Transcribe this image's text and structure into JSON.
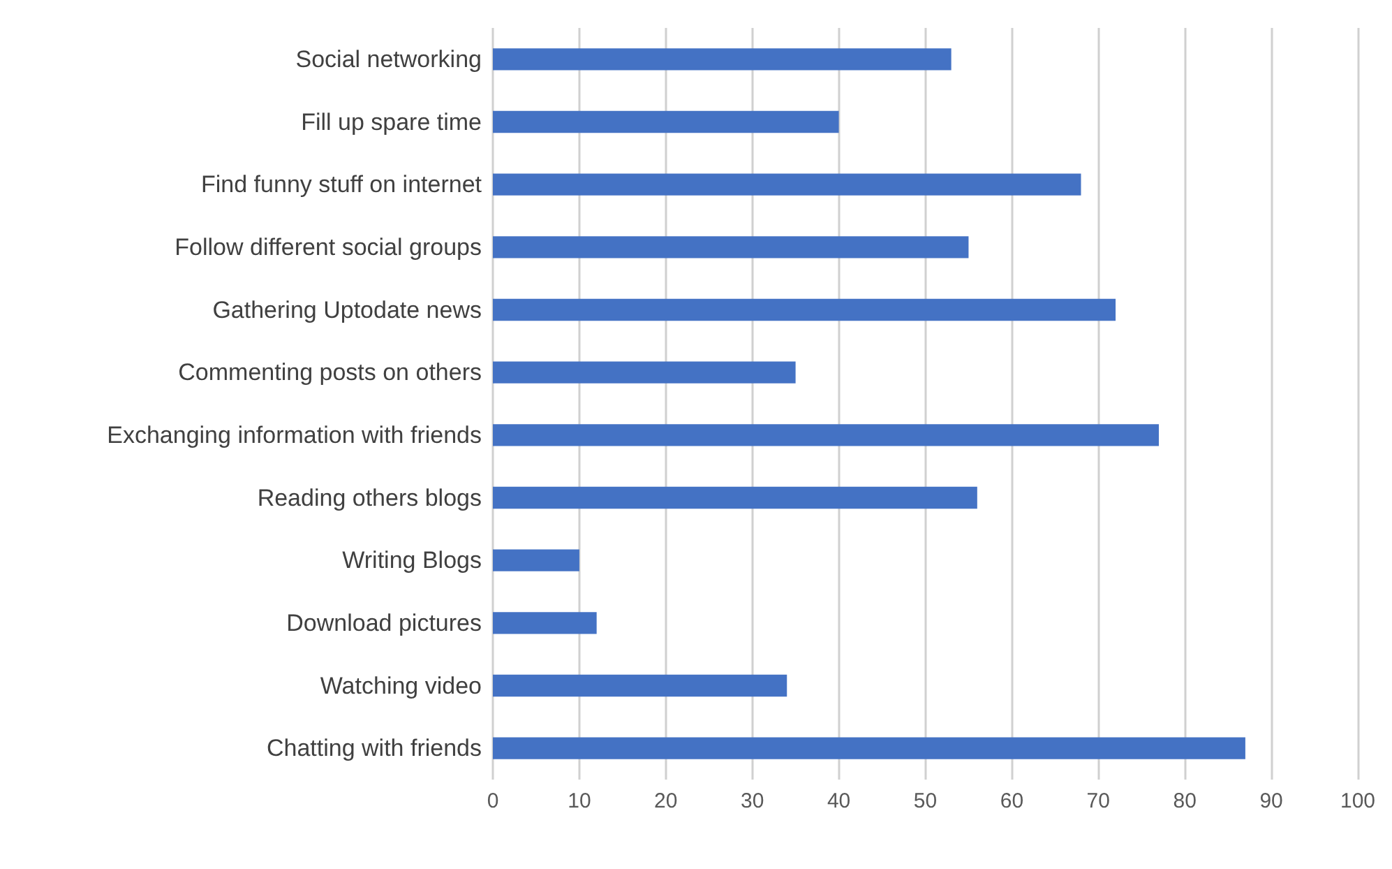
{
  "chart_data": {
    "type": "bar",
    "orientation": "horizontal",
    "categories": [
      "Social networking",
      "Fill up spare time",
      "Find funny stuff on internet",
      "Follow different social groups",
      "Gathering Uptodate news",
      "Commenting posts on others",
      "Exchanging information with friends",
      "Reading others blogs",
      "Writing Blogs",
      "Download pictures",
      "Watching video",
      "Chatting with friends"
    ],
    "values": [
      53,
      40,
      68,
      55,
      72,
      35,
      77,
      56,
      10,
      12,
      34,
      87
    ],
    "color": "#4472c4",
    "xlim": [
      0,
      100
    ],
    "xticks": [
      0,
      10,
      20,
      30,
      40,
      50,
      60,
      70,
      80,
      90,
      100
    ],
    "grid": "x"
  }
}
